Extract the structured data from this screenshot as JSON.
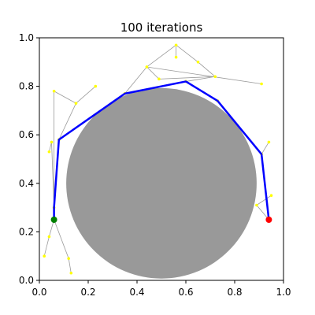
{
  "chart_data": {
    "type": "scatter",
    "title": "100 iterations",
    "xlabel": "",
    "ylabel": "",
    "xlim": [
      0.0,
      1.0
    ],
    "ylim": [
      0.0,
      1.0
    ],
    "xticks": [
      "0.0",
      "0.2",
      "0.4",
      "0.6",
      "0.8",
      "1.0"
    ],
    "yticks": [
      "0.0",
      "0.2",
      "0.4",
      "0.6",
      "0.8",
      "1.0"
    ],
    "grid": false,
    "obstacle": {
      "shape": "circle",
      "center": [
        0.5,
        0.4
      ],
      "radius": 0.39,
      "color": "#999999"
    },
    "start": {
      "x": 0.06,
      "y": 0.25,
      "color": "#008000"
    },
    "goal": {
      "x": 0.94,
      "y": 0.25,
      "color": "#ff0000"
    },
    "tree_nodes": [
      [
        0.06,
        0.25
      ],
      [
        0.06,
        0.3
      ],
      [
        0.04,
        0.18
      ],
      [
        0.02,
        0.1
      ],
      [
        0.12,
        0.09
      ],
      [
        0.13,
        0.03
      ],
      [
        0.08,
        0.58
      ],
      [
        0.05,
        0.57
      ],
      [
        0.04,
        0.53
      ],
      [
        0.06,
        0.78
      ],
      [
        0.15,
        0.73
      ],
      [
        0.23,
        0.8
      ],
      [
        0.35,
        0.77
      ],
      [
        0.44,
        0.88
      ],
      [
        0.49,
        0.83
      ],
      [
        0.56,
        0.97
      ],
      [
        0.56,
        0.92
      ],
      [
        0.6,
        0.82
      ],
      [
        0.65,
        0.9
      ],
      [
        0.72,
        0.84
      ],
      [
        0.73,
        0.74
      ],
      [
        0.91,
        0.81
      ],
      [
        0.91,
        0.52
      ],
      [
        0.94,
        0.57
      ],
      [
        0.89,
        0.31
      ],
      [
        0.95,
        0.35
      ],
      [
        0.94,
        0.25
      ]
    ],
    "tree_edges": [
      [
        0,
        1
      ],
      [
        0,
        2
      ],
      [
        2,
        3
      ],
      [
        0,
        4
      ],
      [
        4,
        5
      ],
      [
        1,
        6
      ],
      [
        1,
        7
      ],
      [
        7,
        8
      ],
      [
        1,
        9
      ],
      [
        6,
        10
      ],
      [
        10,
        11
      ],
      [
        6,
        12
      ],
      [
        12,
        13
      ],
      [
        13,
        14
      ],
      [
        13,
        15
      ],
      [
        15,
        16
      ],
      [
        12,
        17
      ],
      [
        15,
        18
      ],
      [
        18,
        19
      ],
      [
        17,
        19
      ],
      [
        13,
        21
      ],
      [
        17,
        20
      ],
      [
        20,
        22
      ],
      [
        22,
        23
      ],
      [
        22,
        26
      ],
      [
        26,
        24
      ],
      [
        24,
        25
      ],
      [
        14,
        19
      ],
      [
        10,
        9
      ]
    ],
    "path": [
      [
        0.06,
        0.25
      ],
      [
        0.06,
        0.3
      ],
      [
        0.08,
        0.58
      ],
      [
        0.35,
        0.77
      ],
      [
        0.6,
        0.82
      ],
      [
        0.73,
        0.74
      ],
      [
        0.91,
        0.52
      ],
      [
        0.94,
        0.25
      ]
    ],
    "colors": {
      "path": "#0000ff",
      "tree_edge": "#999999",
      "tree_node": "#ffff00"
    }
  }
}
